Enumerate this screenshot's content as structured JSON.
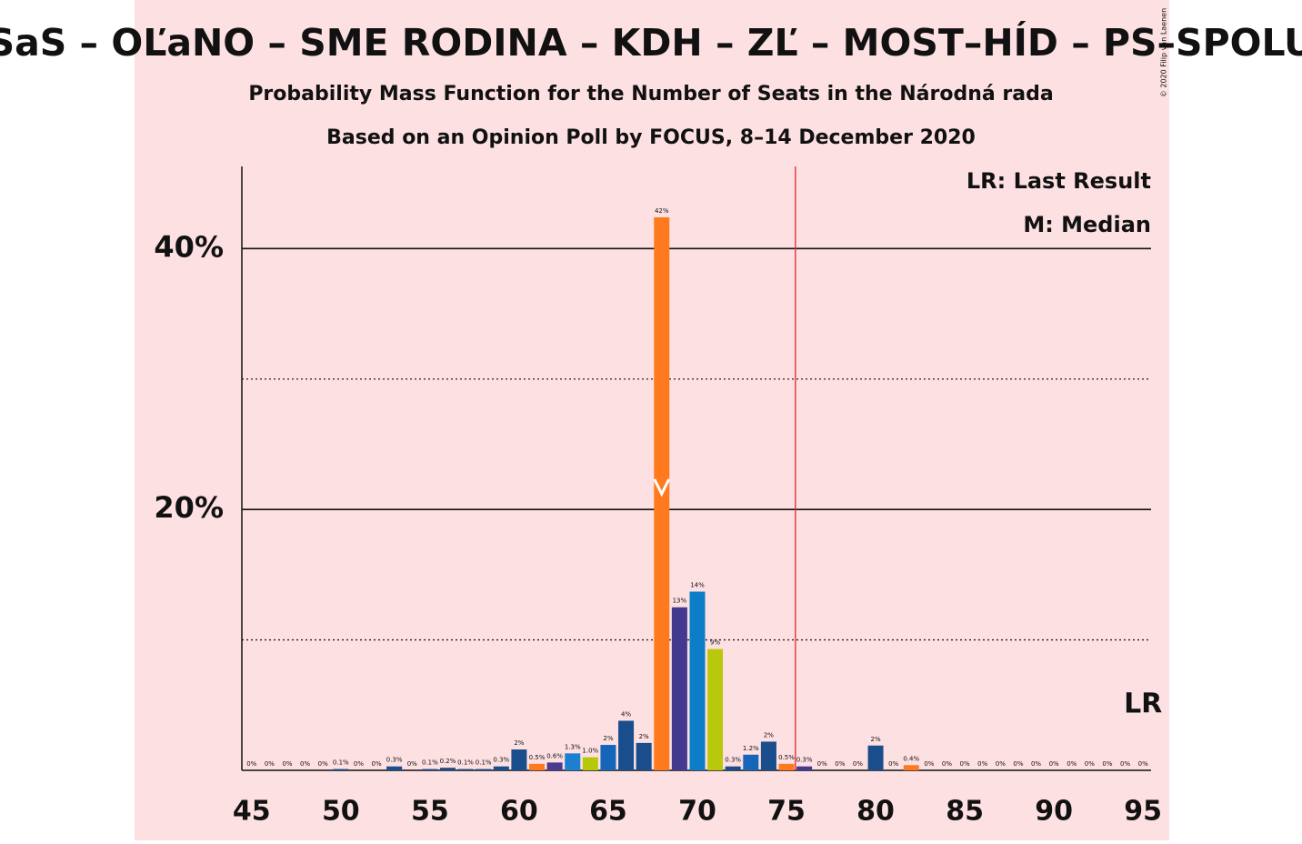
{
  "chart_data": {
    "type": "bar",
    "title": "SaS – OĽaNO – SME RODINA – KDH – ZĽ – MOST–HÍD – PS–SPOLU",
    "subtitle": "Probability Mass Function for the Number of Seats in the Národná rada",
    "subtitle2": "Based on an Opinion Poll by FOCUS, 8–14 December 2020",
    "copyright": "© 2020 Filip van Laenen",
    "legend_lr": "LR: Last Result",
    "legend_median": "M: Median",
    "lr_label": "LR",
    "last_result": 95,
    "median": 68,
    "majority_line": 75.5,
    "majority_color": "#e8232f",
    "categories": [
      45,
      46,
      47,
      48,
      49,
      50,
      51,
      52,
      53,
      54,
      55,
      56,
      57,
      58,
      59,
      60,
      61,
      62,
      63,
      64,
      65,
      66,
      67,
      68,
      69,
      70,
      71,
      72,
      73,
      74,
      75,
      76,
      77,
      78,
      79,
      80,
      81,
      82,
      83,
      84,
      85,
      86,
      87,
      88,
      89,
      90,
      91,
      92,
      93,
      94,
      95
    ],
    "values": [
      0,
      0,
      0,
      0,
      0,
      0.1,
      0,
      0,
      0.3,
      0,
      0.1,
      0.2,
      0.1,
      0.1,
      0.3,
      1.6,
      0.5,
      0.6,
      1.3,
      1.0,
      1.95,
      3.8,
      2.1,
      42.4,
      12.5,
      13.7,
      9.3,
      0.3,
      1.2,
      2.2,
      0.5,
      0.3,
      0,
      0,
      0,
      1.9,
      0,
      0.4,
      0,
      0,
      0,
      0,
      0,
      0,
      0,
      0,
      0,
      0,
      0,
      0,
      0
    ],
    "value_labels": [
      "0%",
      "0%",
      "0%",
      "0%",
      "0%",
      "0.1%",
      "0%",
      "0%",
      "0.3%",
      "0%",
      "0.1%",
      "0.2%",
      "0.1%",
      "0.1%",
      "0.3%",
      "2%",
      "0.5%",
      "0.6%",
      "1.3%",
      "1.0%",
      "2%",
      "4%",
      "2%",
      "42%",
      "13%",
      "14%",
      "9%",
      "0.3%",
      "1.2%",
      "2%",
      "0.5%",
      "0.3%",
      "0%",
      "0%",
      "0%",
      "2%",
      "0%",
      "0.4%",
      "0%",
      "0%",
      "0%",
      "0%",
      "0%",
      "0%",
      "0%",
      "0%",
      "0%",
      "0%",
      "0%",
      "0%",
      "0%"
    ],
    "colors": [
      "#1a4d8c",
      "#1a4d8c",
      "#1a4d8c",
      "#1a4d8c",
      "#1a4d8c",
      "#1a4d8c",
      "#1a4d8c",
      "#1a4d8c",
      "#1a4d8c",
      "#1a4d8c",
      "#1a4d8c",
      "#1a4d8c",
      "#1a4d8c",
      "#1a4d8c",
      "#1a4d8c",
      "#1a4d8c",
      "#ff7a1e",
      "#4b3a8f",
      "#1c7fd0",
      "#b5c90a",
      "#1566b8",
      "#1a4d8c",
      "#1a4d8c",
      "#ff7a1e",
      "#433a8f",
      "#0e7dc8",
      "#b9c80d",
      "#1a4d8c",
      "#1566b8",
      "#1a4d8c",
      "#ff7a1e",
      "#433a8f",
      "#1a4d8c",
      "#1a4d8c",
      "#1a4d8c",
      "#1a4d8c",
      "#1a4d8c",
      "#ff7a1e",
      "#1a4d8c",
      "#1a4d8c",
      "#1a4d8c",
      "#1a4d8c",
      "#1a4d8c",
      "#1a4d8c",
      "#1a4d8c",
      "#1a4d8c",
      "#1a4d8c",
      "#1a4d8c",
      "#1a4d8c",
      "#1a4d8c",
      "#1a4d8c"
    ],
    "xlim": [
      44.45,
      95.45
    ],
    "xticks": [
      45,
      50,
      55,
      60,
      65,
      70,
      75,
      80,
      85,
      90,
      95
    ],
    "ylim": [
      0,
      46.3
    ],
    "yticks": [
      {
        "value": 20,
        "label": "20%"
      },
      {
        "value": 40,
        "label": "40%"
      }
    ],
    "minor_yticks": [
      10,
      30
    ],
    "grid": true
  }
}
